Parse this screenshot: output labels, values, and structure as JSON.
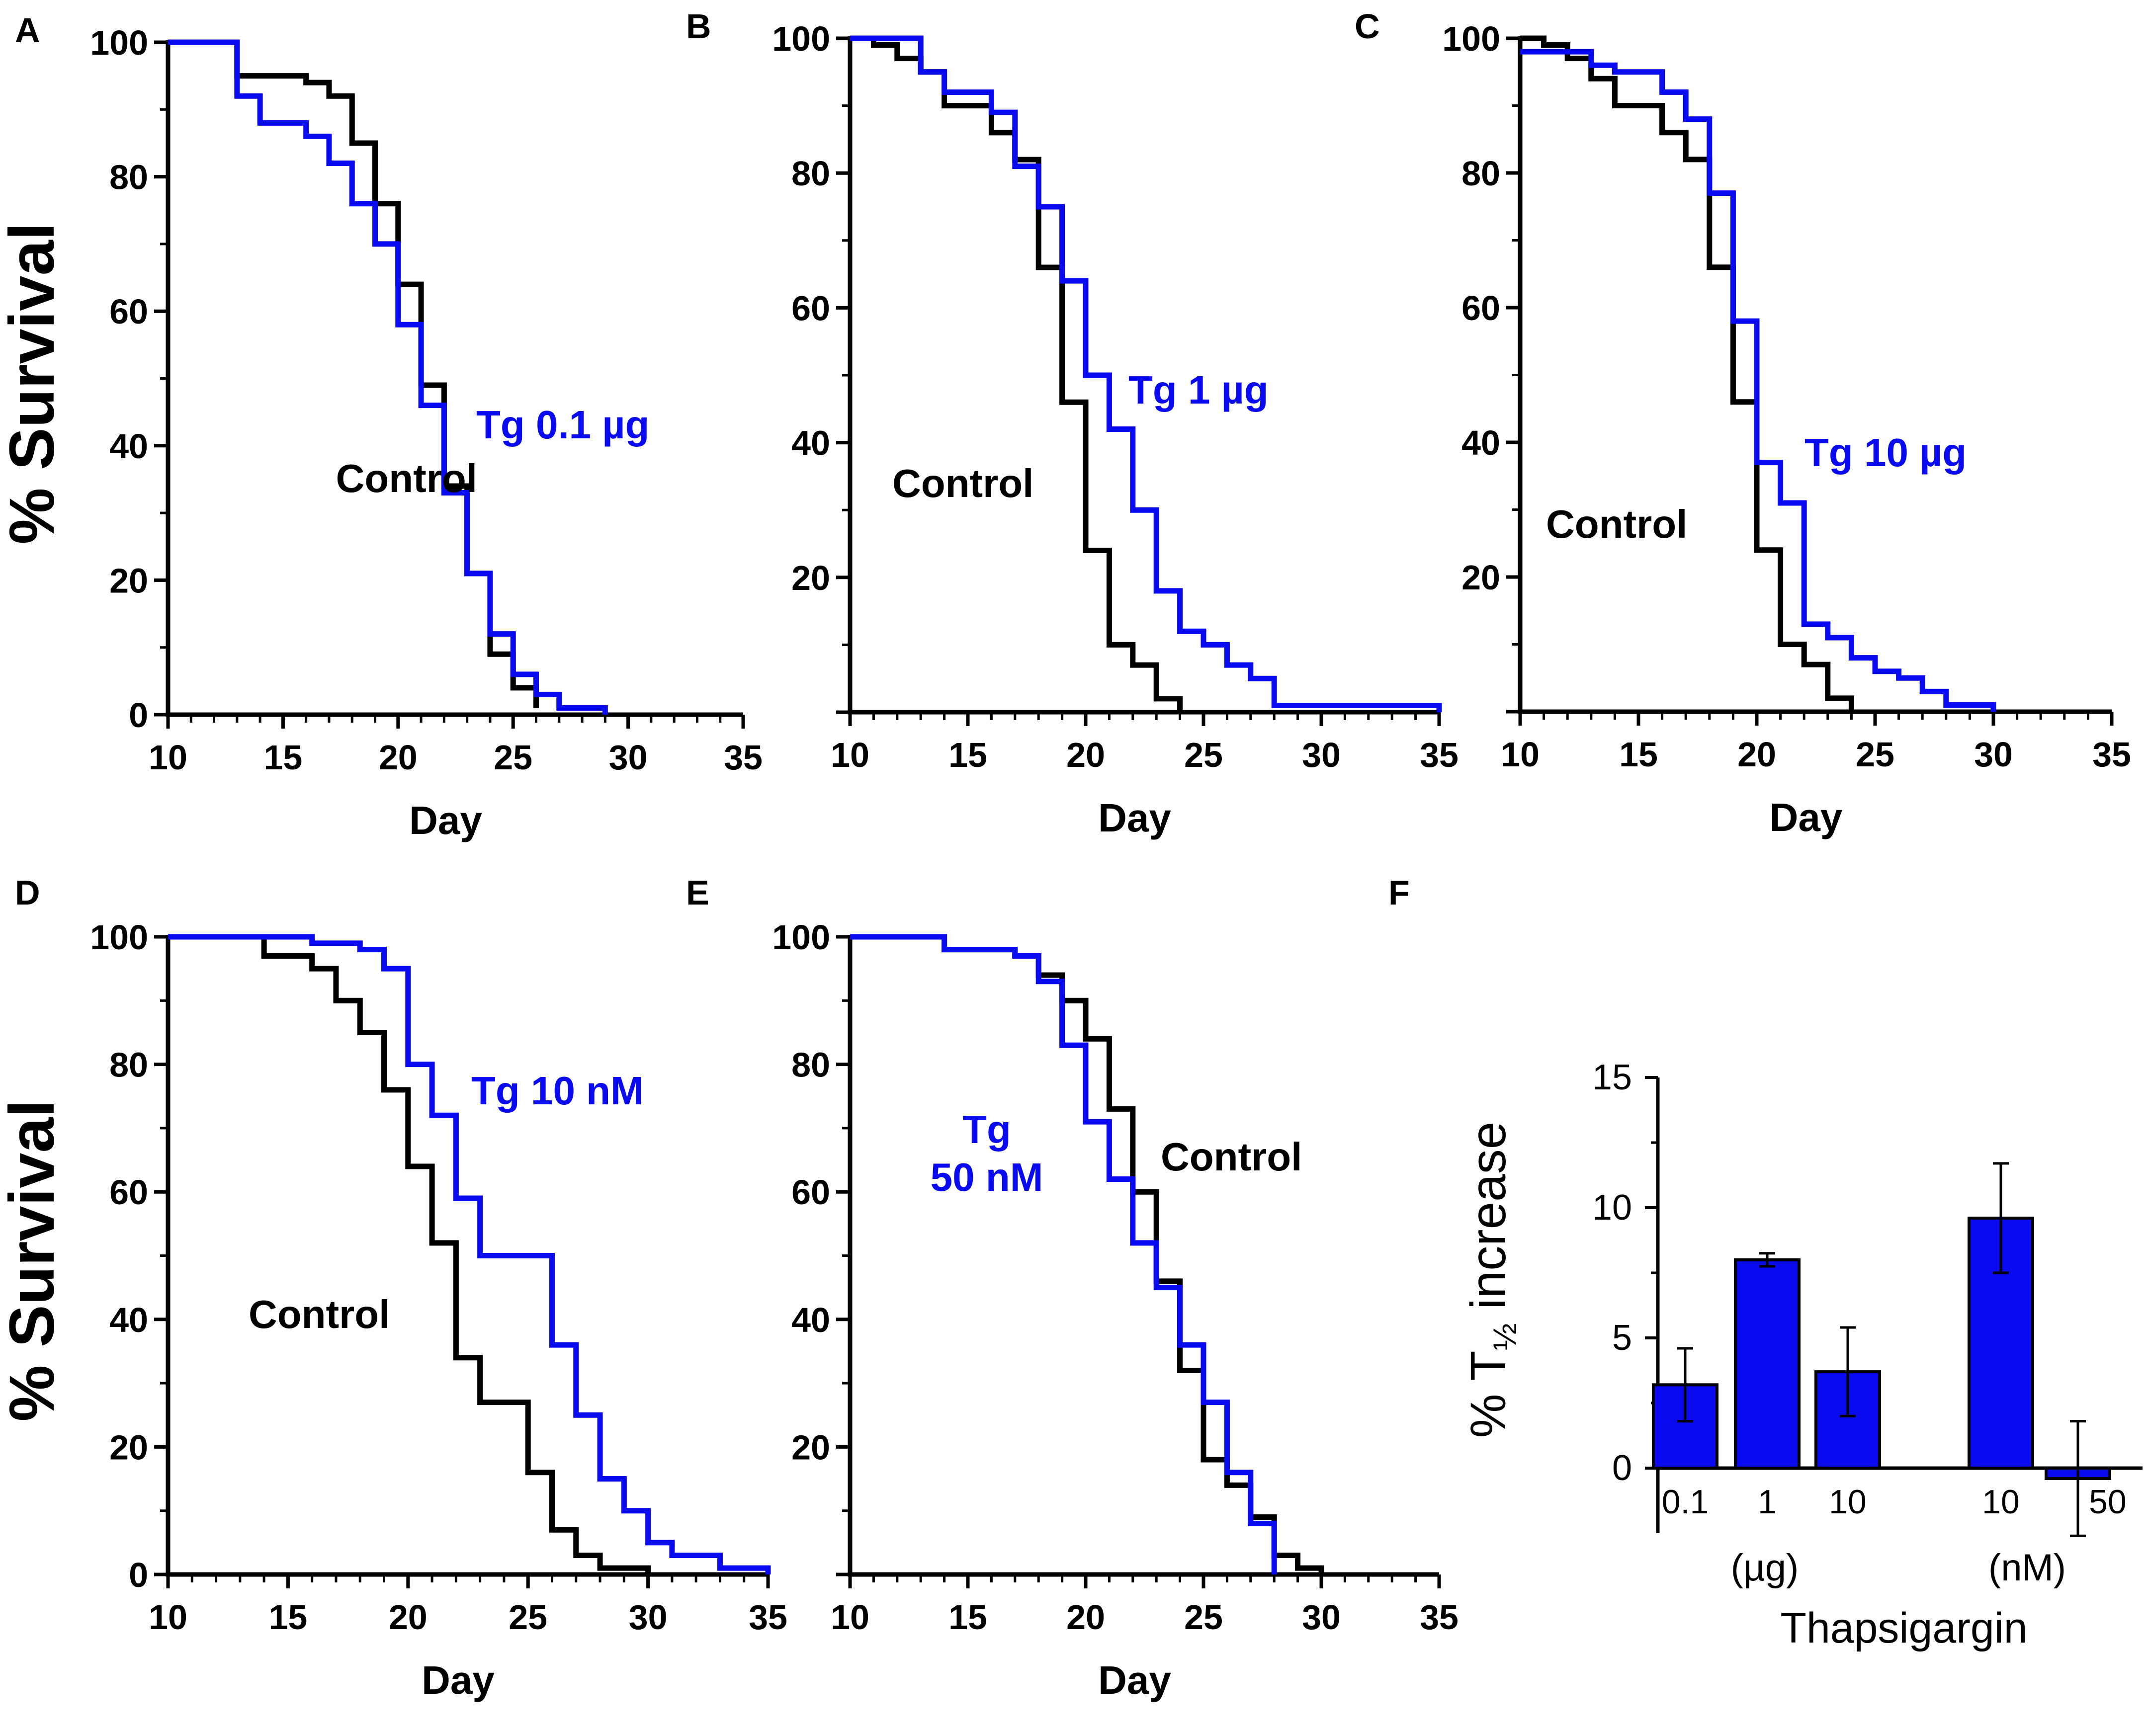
{
  "figure": {
    "colors": {
      "control": "#000000",
      "treatment": "#0a0af0",
      "bar_fill": "#0a0af0",
      "axis": "#000000"
    }
  },
  "chart_data": [
    {
      "panel": "A",
      "type": "line",
      "step": true,
      "xlabel": "Day",
      "ylabel": "% Survival",
      "xlim": [
        10,
        35
      ],
      "ylim": [
        0,
        100
      ],
      "xticks": [
        "10",
        "15",
        "20",
        "25",
        "30",
        "35"
      ],
      "yticks": [
        "0",
        "20",
        "40",
        "60",
        "80",
        "100"
      ],
      "series": [
        {
          "name": "Control",
          "label": "Control",
          "color": "#000000",
          "x": [
            10,
            13,
            16,
            17,
            18,
            19,
            20,
            21,
            22,
            23,
            24,
            25,
            26
          ],
          "y": [
            100,
            95,
            94,
            92,
            85,
            76,
            64,
            49,
            34,
            21,
            9,
            4,
            1
          ]
        },
        {
          "name": "Tg 0.1 µg",
          "label": "Tg 0.1 µg",
          "color": "#0a0af0",
          "x": [
            10,
            13,
            14,
            16,
            17,
            18,
            19,
            20,
            21,
            22,
            23,
            24,
            25,
            26,
            27,
            29
          ],
          "y": [
            100,
            92,
            88,
            86,
            82,
            76,
            70,
            58,
            46,
            33,
            21,
            12,
            6,
            3,
            1,
            0
          ]
        }
      ]
    },
    {
      "panel": "B",
      "type": "line",
      "step": true,
      "xlabel": "Day",
      "ylabel": "",
      "xlim": [
        10,
        35
      ],
      "ylim": [
        0,
        100
      ],
      "xticks": [
        "10",
        "15",
        "20",
        "25",
        "30",
        "35"
      ],
      "yticks": [
        "20",
        "40",
        "60",
        "80",
        "100"
      ],
      "series": [
        {
          "name": "Control",
          "label": "Control",
          "color": "#000000",
          "x": [
            10,
            11,
            12,
            13,
            14,
            16,
            17,
            18,
            19,
            20,
            21,
            22,
            23,
            24
          ],
          "y": [
            100,
            99,
            97,
            95,
            90,
            86,
            82,
            66,
            46,
            24,
            10,
            7,
            2,
            0
          ]
        },
        {
          "name": "Tg 1 µg",
          "label": "Tg 1 µg",
          "color": "#0a0af0",
          "x": [
            10,
            13,
            14,
            16,
            17,
            18,
            19,
            20,
            21,
            22,
            23,
            24,
            25,
            26,
            27,
            28,
            35
          ],
          "y": [
            100,
            95,
            92,
            89,
            81,
            75,
            64,
            50,
            42,
            30,
            18,
            12,
            10,
            7,
            5,
            1,
            0
          ]
        }
      ]
    },
    {
      "panel": "C",
      "type": "line",
      "step": true,
      "xlabel": "Day",
      "ylabel": "",
      "xlim": [
        10,
        35
      ],
      "ylim": [
        0,
        100
      ],
      "xticks": [
        "10",
        "15",
        "20",
        "25",
        "30",
        "35"
      ],
      "yticks": [
        "20",
        "40",
        "60",
        "80",
        "100"
      ],
      "series": [
        {
          "name": "Control",
          "label": "Control",
          "color": "#000000",
          "x": [
            10,
            11,
            12,
            13,
            14,
            16,
            17,
            18,
            19,
            20,
            21,
            22,
            23,
            24
          ],
          "y": [
            100,
            99,
            97,
            94,
            90,
            86,
            82,
            66,
            46,
            24,
            10,
            7,
            2,
            0
          ]
        },
        {
          "name": "Tg 10 µg",
          "label": "Tg 10 µg",
          "color": "#0a0af0",
          "x": [
            10,
            13,
            14,
            16,
            17,
            18,
            19,
            20,
            21,
            22,
            23,
            24,
            25,
            26,
            27,
            28,
            30
          ],
          "y": [
            98,
            96,
            95,
            92,
            88,
            77,
            58,
            37,
            31,
            13,
            11,
            8,
            6,
            5,
            3,
            1,
            0
          ]
        }
      ]
    },
    {
      "panel": "D",
      "type": "line",
      "step": true,
      "xlabel": "Day",
      "ylabel": "% Survival",
      "xlim": [
        10,
        35
      ],
      "ylim": [
        0,
        100
      ],
      "xticks": [
        "10",
        "15",
        "20",
        "25",
        "30",
        "35"
      ],
      "yticks": [
        "0",
        "20",
        "40",
        "60",
        "80",
        "100"
      ],
      "series": [
        {
          "name": "Control",
          "label": "Control",
          "color": "#000000",
          "x": [
            10,
            14,
            16,
            17,
            18,
            19,
            20,
            21,
            22,
            23,
            25,
            26,
            27,
            28,
            30
          ],
          "y": [
            100,
            97,
            95,
            90,
            85,
            76,
            64,
            52,
            34,
            27,
            16,
            7,
            3,
            1,
            0
          ]
        },
        {
          "name": "Tg 10 nM",
          "label": "Tg 10 nM",
          "color": "#0a0af0",
          "x": [
            10,
            16,
            18,
            19,
            20,
            21,
            22,
            23,
            24,
            26,
            27,
            28,
            29,
            30,
            31,
            33,
            35
          ],
          "y": [
            100,
            99,
            98,
            95,
            80,
            72,
            59,
            50,
            50,
            36,
            25,
            15,
            10,
            5,
            3,
            1,
            0
          ]
        }
      ]
    },
    {
      "panel": "E",
      "type": "line",
      "step": true,
      "xlabel": "Day",
      "ylabel": "",
      "xlim": [
        10,
        35
      ],
      "ylim": [
        0,
        100
      ],
      "xticks": [
        "10",
        "15",
        "20",
        "25",
        "30",
        "35"
      ],
      "yticks": [
        "20",
        "40",
        "60",
        "80",
        "100"
      ],
      "series": [
        {
          "name": "Control",
          "label": "Control",
          "color": "#000000",
          "x": [
            10,
            14,
            17,
            18,
            19,
            20,
            21,
            22,
            23,
            24,
            25,
            26,
            27,
            28,
            29,
            30
          ],
          "y": [
            100,
            98,
            97,
            94,
            90,
            84,
            73,
            60,
            46,
            32,
            18,
            14,
            9,
            3,
            1,
            0
          ]
        },
        {
          "name": "Tg 50 nM",
          "label": "Tg\n50 nM",
          "color": "#0a0af0",
          "x": [
            10,
            14,
            17,
            18,
            19,
            20,
            21,
            22,
            23,
            24,
            25,
            26,
            27,
            28
          ],
          "y": [
            100,
            98,
            97,
            93,
            83,
            71,
            62,
            52,
            45,
            36,
            27,
            16,
            8,
            0
          ]
        }
      ]
    },
    {
      "panel": "F",
      "type": "bar",
      "title": "",
      "ylabel": "% T½ increase",
      "ylabel_parts": {
        "prefix": "% T",
        "subscript": "½",
        "suffix": " increase"
      },
      "xlabel": "Thapsigargin",
      "group_labels": [
        "(µg)",
        "(nM)"
      ],
      "categories": [
        "0.1",
        "1",
        "10",
        "10",
        "50"
      ],
      "groups": [
        "µg",
        "µg",
        "µg",
        "nM",
        "nM"
      ],
      "values": [
        3.2,
        8.0,
        3.7,
        9.6,
        -0.4
      ],
      "errors": [
        1.4,
        0.25,
        1.7,
        2.1,
        2.2
      ],
      "ylim": [
        -2.5,
        15
      ],
      "yticks": [
        "0",
        "5",
        "10",
        "15"
      ]
    }
  ],
  "panel_letters": [
    "A",
    "B",
    "C",
    "D",
    "E",
    "F"
  ]
}
